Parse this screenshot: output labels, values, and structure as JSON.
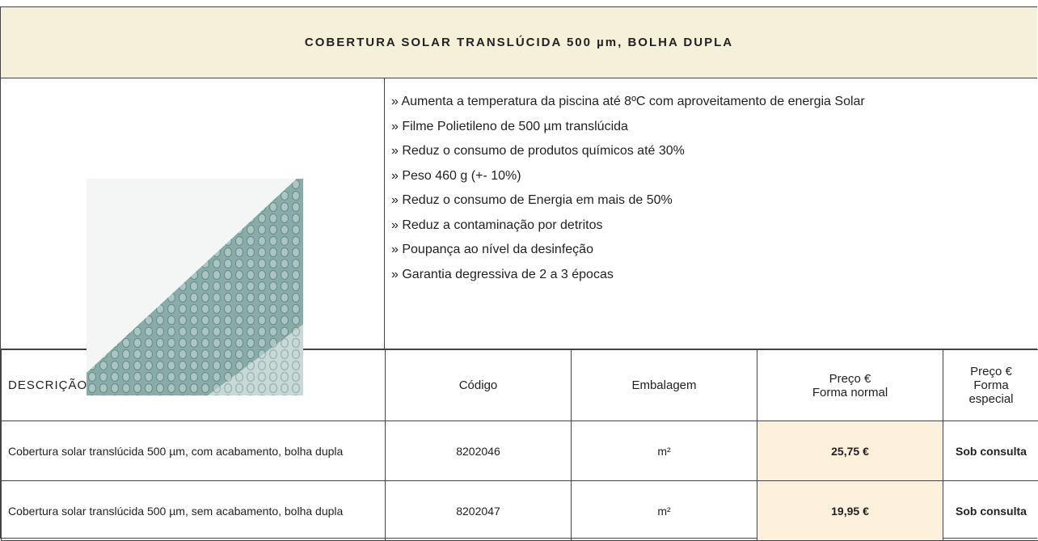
{
  "header": {
    "title": "COBERTURA SOLAR TRANSLÚCIDA 500 µm, BOLHA DUPLA"
  },
  "features": [
    "» Aumenta a temperatura da piscina até 8ºC com aproveitamento de energia Solar",
    "» Filme Polietileno de 500 µm translúcida",
    "» Reduz o consumo de produtos químicos até 30%",
    "» Peso 460 g (+- 10%)",
    "» Reduz o consumo de Energia em mais de 50%",
    "» Reduz a contaminação por detritos",
    "» Poupança ao nível da desinfeção",
    "» Garantia degressiva de 2 a 3 épocas"
  ],
  "table": {
    "columns": [
      [
        "DESCRIÇÃO"
      ],
      [
        "Código"
      ],
      [
        "Embalagem"
      ],
      [
        "Preço €",
        "Forma normal"
      ],
      [
        "Preço €",
        "Forma especial"
      ]
    ],
    "rows": [
      [
        "Cobertura solar translúcida 500 µm, com acabamento, bolha dupla",
        "8202046",
        "m²",
        "25,75 €",
        "Sob consulta"
      ],
      [
        "Cobertura solar translúcida 500 µm, sem acabamento, bolha dupla",
        "8202047",
        "m²",
        "19,95 €",
        "Sob consulta"
      ]
    ]
  }
}
